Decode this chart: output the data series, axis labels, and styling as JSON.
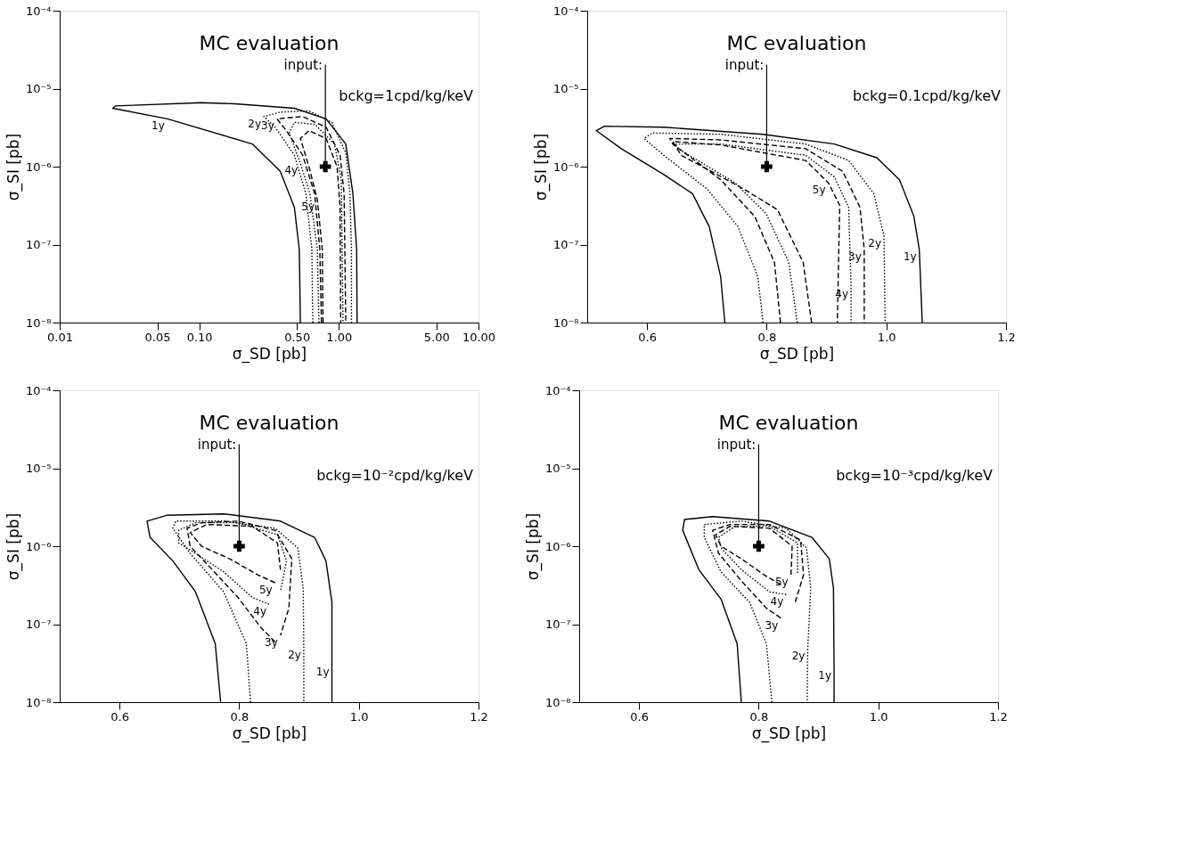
{
  "chart_data": [
    {
      "type": "line",
      "title": "MC evaluation",
      "subtitle": "bckg=1cpd/kg/keV",
      "xlabel": "σ_SD [pb]",
      "ylabel": "σ_SI [pb]",
      "log": "xy",
      "grid": false,
      "xlim": [
        0.01,
        10
      ],
      "xticks": [
        {
          "value": 0.01,
          "label": "0.01"
        },
        {
          "value": 0.05,
          "label": "0.05"
        },
        {
          "value": 0.1,
          "label": "0.10"
        },
        {
          "value": 0.5,
          "label": "0.50"
        },
        {
          "value": 1,
          "label": "1.00"
        },
        {
          "value": 5,
          "label": "5.00"
        },
        {
          "value": 10,
          "label": "10.00"
        }
      ],
      "ylim": [
        1e-08,
        0.0001
      ],
      "yticks": [
        {
          "value": 1e-08,
          "label": "10⁻⁸"
        },
        {
          "value": 1e-07,
          "label": "10⁻⁷"
        },
        {
          "value": 1e-06,
          "label": "10⁻⁶"
        },
        {
          "value": 1e-05,
          "label": "10⁻⁵"
        },
        {
          "value": 0.0001,
          "label": "10⁻⁴"
        }
      ],
      "series": [
        {
          "color": "#000000",
          "line_style": "solid",
          "x": [
            0.53,
            0.52,
            0.48,
            0.38,
            0.24,
            0.059,
            0.024,
            0.025,
            0.103,
            0.18,
            0.48,
            0.81,
            1.12,
            1.26,
            1.34,
            1.35
          ],
          "values": [
            1e-08,
            8.7e-08,
            3e-07,
            8.7e-07,
            1.95e-06,
            4.1e-06,
            5.6e-06,
            6e-06,
            6.6e-06,
            6.4e-06,
            5.6e-06,
            4.1e-06,
            1.95e-06,
            4.5e-07,
            8.7e-08,
            1e-08
          ]
        },
        {
          "color": "#000000",
          "line_style": "dotted",
          "x": [
            0.65,
            0.64,
            0.58,
            0.48,
            0.35,
            0.29,
            0.38,
            0.61,
            0.89,
            1.12,
            1.2,
            1.23,
            1.23
          ],
          "values": [
            1e-08,
            8.7e-08,
            4.5e-07,
            1.4e-06,
            3.2e-06,
            4.4e-06,
            5e-06,
            5.2e-06,
            3.7e-06,
            1.5e-06,
            4.5e-07,
            8.7e-08,
            1e-08
          ]
        },
        {
          "color": "#000000",
          "line_style": "dashed",
          "x": [
            0.75,
            0.73,
            0.67,
            0.55,
            0.42,
            0.36,
            0.55,
            0.81,
            1.02,
            1.09,
            1.12
          ],
          "values": [
            1e-08,
            8.7e-08,
            4.5e-07,
            1.4e-06,
            2.9e-06,
            4.1e-06,
            4.4e-06,
            3.2e-06,
            1.4e-06,
            4.5e-07,
            1e-08
          ]
        },
        {
          "color": "#000000",
          "line_style": "dotted",
          "x": [
            0.72,
            0.7,
            0.62,
            0.53,
            0.44,
            0.48,
            0.67,
            0.93,
            1.04,
            1.07
          ],
          "values": [
            1e-08,
            8.7e-08,
            4.5e-07,
            1.1e-06,
            2.7e-06,
            3.7e-06,
            3.5e-06,
            1.95e-06,
            6.8e-07,
            1e-08
          ]
        },
        {
          "color": "#000000",
          "line_style": "dashed",
          "x": [
            0.77,
            0.76,
            0.7,
            0.61,
            0.53,
            0.61,
            0.81,
            0.97,
            1.02,
            1.03
          ],
          "values": [
            1e-08,
            8.7e-08,
            3.8e-07,
            1e-06,
            2.3e-06,
            2.9e-06,
            2.3e-06,
            1e-06,
            3e-07,
            1e-08
          ]
        },
        {
          "type": "scatter",
          "marker": "cross",
          "color": "#000000",
          "x": [
            0.8
          ],
          "values": [
            1e-06
          ]
        }
      ],
      "annotations": [
        {
          "text": "input:",
          "x": 0.8,
          "y": 1e-06
        },
        {
          "text": "1y",
          "x": 0.059,
          "y": 4.1e-06
        },
        {
          "text": "2y",
          "x": 0.29,
          "y": 4.4e-06
        },
        {
          "text": "3y",
          "x": 0.36,
          "y": 4.1e-06
        },
        {
          "text": "4y",
          "x": 0.53,
          "y": 1.1e-06
        },
        {
          "text": "5y",
          "x": 0.7,
          "y": 3.8e-07
        }
      ]
    },
    {
      "type": "line",
      "title": "MC evaluation",
      "subtitle": "bckg=0.1cpd/kg/keV",
      "xlabel": "σ_SD [pb]",
      "ylabel": "σ_SI [pb]",
      "log": "y",
      "grid": false,
      "xlim": [
        0.5,
        1.2
      ],
      "xticks": [
        0.6,
        0.8,
        {
          "value": 1.0,
          "label": "1.0"
        },
        1.2
      ],
      "ylim": [
        1e-08,
        0.0001
      ],
      "yticks": [
        {
          "value": 1e-08,
          "label": "10⁻⁸"
        },
        {
          "value": 1e-07,
          "label": "10⁻⁷"
        },
        {
          "value": 1e-06,
          "label": "10⁻⁶"
        },
        {
          "value": 1e-05,
          "label": "10⁻⁵"
        },
        {
          "value": 0.0001,
          "label": "10⁻⁴"
        }
      ],
      "series": [
        {
          "color": "#000000",
          "line_style": "solid",
          "x": [
            0.73,
            0.723,
            0.704,
            0.676,
            0.628,
            0.557,
            0.515,
            0.529,
            0.628,
            0.794,
            0.913,
            0.984,
            1.022,
            1.046,
            1.055,
            1.06
          ],
          "values": [
            1e-08,
            3.9e-08,
            1.7e-07,
            4.5e-07,
            7.9e-07,
            1.7e-06,
            2.9e-06,
            3.3e-06,
            3.2e-06,
            2.6e-06,
            1.95e-06,
            1.3e-06,
            6.8e-07,
            2.3e-07,
            8.7e-08,
            1e-08
          ]
        },
        {
          "color": "#000000",
          "line_style": "dotted",
          "x": [
            0.794,
            0.785,
            0.752,
            0.7,
            0.628,
            0.595,
            0.609,
            0.723,
            0.865,
            0.937,
            0.979,
            0.996,
            0.998
          ],
          "values": [
            1e-08,
            3.9e-08,
            1.7e-07,
            5.2e-07,
            1.4e-06,
            2.3e-06,
            2.7e-06,
            2.6e-06,
            1.95e-06,
            1.2e-06,
            4.5e-07,
            1.3e-07,
            1e-08
          ]
        },
        {
          "color": "#000000",
          "line_style": "dashed",
          "x": [
            0.823,
            0.813,
            0.78,
            0.723,
            0.643,
            0.638,
            0.723,
            0.865,
            0.927,
            0.956,
            0.963,
            0.963
          ],
          "values": [
            1e-08,
            5.9e-08,
            2.3e-07,
            6.8e-07,
            1.95e-06,
            2.3e-06,
            2.2e-06,
            1.7e-06,
            8.7e-07,
            3e-07,
            8.7e-08,
            1e-08
          ]
        },
        {
          "color": "#000000",
          "line_style": "dotted",
          "x": [
            0.851,
            0.837,
            0.799,
            0.747,
            0.652,
            0.647,
            0.723,
            0.865,
            0.913,
            0.937,
            0.941,
            0.941
          ],
          "values": [
            1e-08,
            5.9e-08,
            2.5e-07,
            6.2e-07,
            1.7e-06,
            1.95e-06,
            1.95e-06,
            1.4e-06,
            7.4e-07,
            3e-07,
            2.9e-08,
            1e-08
          ]
        },
        {
          "color": "#000000",
          "line_style": "dashed",
          "x": [
            0.875,
            0.861,
            0.818,
            0.761,
            0.657,
            0.643,
            0.723,
            0.865,
            0.903,
            0.922,
            0.918
          ],
          "values": [
            1e-08,
            5.9e-08,
            2.8e-07,
            5.2e-07,
            1.4e-06,
            2.1e-06,
            1.9e-06,
            1.2e-06,
            6.2e-07,
            3.2e-07,
            1e-08
          ]
        },
        {
          "type": "scatter",
          "marker": "cross",
          "color": "#000000",
          "x": [
            0.8
          ],
          "values": [
            1e-06
          ]
        }
      ],
      "annotations": [
        {
          "text": "input:",
          "x": 0.8,
          "y": 1e-06
        },
        {
          "text": "5y",
          "x": 0.903,
          "y": 6.2e-07
        },
        {
          "text": "3y",
          "x": 0.963,
          "y": 8.7e-08
        },
        {
          "text": "2y",
          "x": 0.996,
          "y": 1.3e-07
        },
        {
          "text": "4y",
          "x": 0.941,
          "y": 2.9e-08
        },
        {
          "text": "1y",
          "x": 1.055,
          "y": 8.7e-08
        }
      ]
    },
    {
      "type": "line",
      "title": "MC evaluation",
      "subtitle": "bckg=10⁻²cpd/kg/keV",
      "xlabel": "σ_SD [pb]",
      "ylabel": "σ_SI [pb]",
      "log": "y",
      "grid": false,
      "xlim": [
        0.5,
        1.2
      ],
      "xticks": [
        0.6,
        0.8,
        {
          "value": 1.0,
          "label": "1.0"
        },
        1.2
      ],
      "ylim": [
        1e-08,
        0.0001
      ],
      "yticks": [
        {
          "value": 1e-08,
          "label": "10⁻⁸"
        },
        {
          "value": 1e-07,
          "label": "10⁻⁷"
        },
        {
          "value": 1e-06,
          "label": "10⁻⁶"
        },
        {
          "value": 1e-05,
          "label": "10⁻⁵"
        },
        {
          "value": 0.0001,
          "label": "10⁻⁴"
        }
      ],
      "series": [
        {
          "color": "#000000",
          "line_style": "solid",
          "x": [
            0.769,
            0.76,
            0.727,
            0.689,
            0.651,
            0.646,
            0.68,
            0.774,
            0.869,
            0.926,
            0.945,
            0.955,
            0.955,
            0.955
          ],
          "values": [
            1e-08,
            5.6e-08,
            2.6e-07,
            6.5e-07,
            1.3e-06,
            2.1e-06,
            2.5e-06,
            2.6e-06,
            2.1e-06,
            1.3e-06,
            6.5e-07,
            1.9e-07,
            3e-08,
            1e-08
          ]
        },
        {
          "color": "#000000",
          "line_style": "dotted",
          "x": [
            0.819,
            0.812,
            0.774,
            0.718,
            0.689,
            0.694,
            0.774,
            0.86,
            0.898,
            0.907,
            0.908,
            0.908
          ],
          "values": [
            1e-08,
            5.6e-08,
            2.6e-07,
            8.1e-07,
            1.7e-06,
            2.1e-06,
            2.1e-06,
            1.7e-06,
            9.5e-07,
            2.9e-07,
            5e-08,
            1e-08
          ]
        },
        {
          "color": "#000000",
          "line_style": "dashed",
          "x": [
            0.86,
            0.836,
            0.798,
            0.755,
            0.718,
            0.713,
            0.737,
            0.798,
            0.86,
            0.888,
            0.883,
            0.869
          ],
          "values": [
            5.9e-08,
            9.1e-08,
            2.2e-07,
            5e-07,
            1e-06,
            1.7e-06,
            2e-06,
            2.1e-06,
            1.6e-06,
            6.9e-07,
            1.6e-07,
            7.2e-08
          ]
        },
        {
          "color": "#000000",
          "line_style": "dotted",
          "x": [
            0.85,
            0.822,
            0.774,
            0.727,
            0.699,
            0.699,
            0.727,
            0.798,
            0.864,
            0.879,
            0.869
          ],
          "values": [
            1.8e-07,
            2.2e-07,
            4.7e-07,
            8.1e-07,
            1.1e-06,
            1.6e-06,
            2e-06,
            2e-06,
            1.4e-06,
            6.5e-07,
            2.6e-07
          ]
        },
        {
          "color": "#000000",
          "line_style": "dashed",
          "x": [
            0.86,
            0.831,
            0.784,
            0.737,
            0.718,
            0.746,
            0.822,
            0.864,
            0.869
          ],
          "values": [
            3.4e-07,
            4.3e-07,
            6.9e-07,
            1e-06,
            1.5e-06,
            1.9e-06,
            1.8e-06,
            1.1e-06,
            5e-07
          ]
        },
        {
          "type": "scatter",
          "marker": "cross",
          "color": "#000000",
          "x": [
            0.8
          ],
          "values": [
            1e-06
          ]
        }
      ],
      "annotations": [
        {
          "text": "input:",
          "x": 0.8,
          "y": 1e-06
        },
        {
          "text": "5y",
          "x": 0.86,
          "y": 3.4e-07
        },
        {
          "text": "4y",
          "x": 0.85,
          "y": 1.8e-07
        },
        {
          "text": "3y",
          "x": 0.869,
          "y": 7.2e-08
        },
        {
          "text": "2y",
          "x": 0.908,
          "y": 5e-08
        },
        {
          "text": "1y",
          "x": 0.955,
          "y": 3e-08
        }
      ]
    },
    {
      "type": "line",
      "title": "MC evaluation",
      "subtitle": "bckg=10⁻³cpd/kg/keV",
      "xlabel": "σ_SD [pb]",
      "ylabel": "σ_SI [pb]",
      "log": "y",
      "grid": false,
      "xlim": [
        0.5,
        1.2
      ],
      "xticks": [
        0.6,
        0.8,
        {
          "value": 1.0,
          "label": "1.0"
        },
        1.2
      ],
      "ylim": [
        1e-08,
        0.0001
      ],
      "yticks": [
        {
          "value": 1e-08,
          "label": "10⁻⁸"
        },
        {
          "value": 1e-07,
          "label": "10⁻⁷"
        },
        {
          "value": 1e-06,
          "label": "10⁻⁶"
        },
        {
          "value": 1e-05,
          "label": "10⁻⁵"
        },
        {
          "value": 0.0001,
          "label": "10⁻⁴"
        }
      ],
      "series": [
        {
          "color": "#000000",
          "line_style": "solid",
          "x": [
            0.771,
            0.764,
            0.737,
            0.7,
            0.673,
            0.676,
            0.723,
            0.818,
            0.889,
            0.918,
            0.925,
            0.926,
            0.926
          ],
          "values": [
            1e-08,
            5.6e-08,
            2.1e-07,
            5e-07,
            1.6e-06,
            2.2e-06,
            2.4e-06,
            2.1e-06,
            1.3e-06,
            6.9e-07,
            2.9e-07,
            2.7e-08,
            1e-08
          ]
        },
        {
          "color": "#000000",
          "line_style": "dotted",
          "x": [
            0.822,
            0.813,
            0.785,
            0.737,
            0.709,
            0.709,
            0.771,
            0.846,
            0.88,
            0.887,
            0.882,
            0.881
          ],
          "values": [
            1e-08,
            5.6e-08,
            1.9e-07,
            4.7e-07,
            1.3e-06,
            1.9e-06,
            2.1e-06,
            1.7e-06,
            9.5e-07,
            2.9e-07,
            4.8e-08,
            1e-08
          ]
        },
        {
          "color": "#000000",
          "line_style": "dashed",
          "x": [
            0.837,
            0.813,
            0.771,
            0.733,
            0.723,
            0.752,
            0.818,
            0.87,
            0.875,
            0.861
          ],
          "values": [
            1.2e-07,
            1.6e-07,
            3.6e-07,
            8.1e-07,
            1.6e-06,
            1.9e-06,
            1.9e-06,
            1.2e-06,
            4.3e-07,
            1.9e-07
          ]
        },
        {
          "color": "#000000",
          "line_style": "dotted",
          "x": [
            0.846,
            0.818,
            0.771,
            0.737,
            0.733,
            0.761,
            0.818,
            0.865,
            0.865
          ],
          "values": [
            2.4e-07,
            2.6e-07,
            5e-07,
            9.5e-07,
            1.3e-06,
            1.8e-06,
            1.8e-06,
            1.1e-06,
            4.3e-07
          ]
        },
        {
          "color": "#000000",
          "line_style": "dashed",
          "x": [
            0.837,
            0.809,
            0.771,
            0.737,
            0.728,
            0.752,
            0.818,
            0.856,
            0.854
          ],
          "values": [
            3.2e-07,
            4.3e-07,
            6.9e-07,
            1e-06,
            1.4e-06,
            1.8e-06,
            1.7e-06,
            1e-06,
            4.3e-07
          ]
        },
        {
          "type": "scatter",
          "marker": "cross",
          "color": "#000000",
          "x": [
            0.8
          ],
          "values": [
            1e-06
          ]
        }
      ],
      "annotations": [
        {
          "text": "input:",
          "x": 0.8,
          "y": 1e-06
        },
        {
          "text": "5y",
          "x": 0.854,
          "y": 4.3e-07
        },
        {
          "text": "4y",
          "x": 0.846,
          "y": 2.4e-07
        },
        {
          "text": "3y",
          "x": 0.837,
          "y": 1.2e-07
        },
        {
          "text": "2y",
          "x": 0.882,
          "y": 4.8e-08
        },
        {
          "text": "1y",
          "x": 0.926,
          "y": 2.7e-08
        }
      ]
    }
  ]
}
